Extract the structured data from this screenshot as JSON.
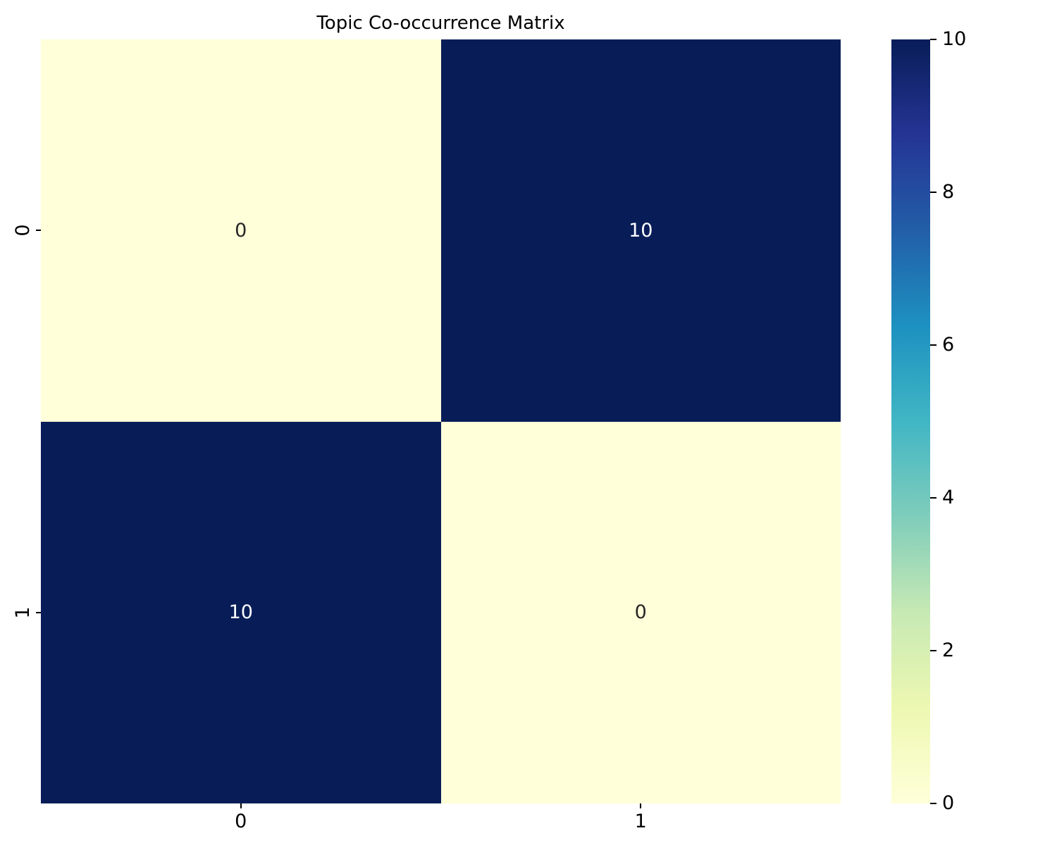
{
  "colors": {
    "background": "#ffffff",
    "axis_text": "#000000",
    "annotation_dark": "#262626",
    "annotation_light": "#ffffff"
  },
  "chart_data": {
    "type": "heatmap",
    "title": "Topic Co-occurrence Matrix",
    "x_tick_labels": [
      "0",
      "1"
    ],
    "y_tick_labels": [
      "0",
      "1"
    ],
    "matrix": [
      [
        0,
        10
      ],
      [
        10,
        0
      ]
    ],
    "vmin": 0,
    "vmax": 10,
    "colormap": "YlGnBu",
    "colormap_stops": [
      "#ffffd9",
      "#edf8b1",
      "#c7e9b4",
      "#7fcdbb",
      "#41b6c4",
      "#1d91c0",
      "#225ea8",
      "#253494",
      "#081d58"
    ],
    "colorbar_ticks": [
      0,
      2,
      4,
      6,
      8,
      10
    ],
    "colorbar_position": "right",
    "grid": false,
    "cell_line_width": 0
  }
}
